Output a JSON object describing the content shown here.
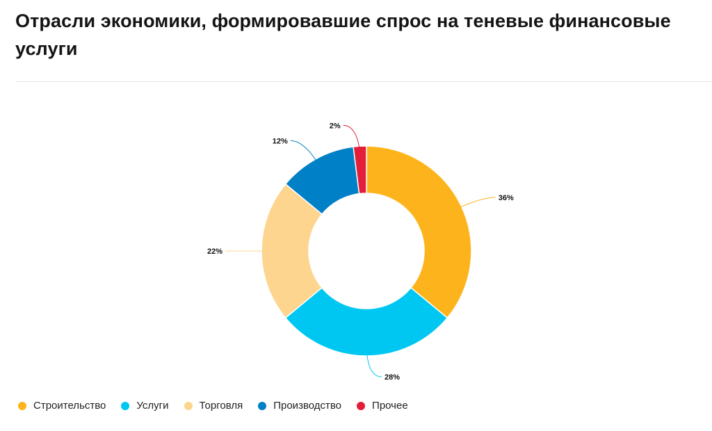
{
  "header": {
    "title": "Отрасли экономики, формировавшие спрос на теневые финансовые услуги"
  },
  "chart_data": {
    "type": "pie",
    "donut": true,
    "title": "Отрасли экономики, формировавшие спрос на теневые финансовые услуги",
    "categories": [
      "Строительство",
      "Услуги",
      "Торговля",
      "Производство",
      "Прочее"
    ],
    "values": [
      36,
      28,
      22,
      12,
      2
    ],
    "labels": [
      "36%",
      "28%",
      "22%",
      "12%",
      "2%"
    ],
    "colors": [
      "#FDB41C",
      "#00C7F1",
      "#FDD58E",
      "#0080C6",
      "#E31E3A"
    ],
    "unit": "%",
    "legend_position": "bottom-left"
  }
}
